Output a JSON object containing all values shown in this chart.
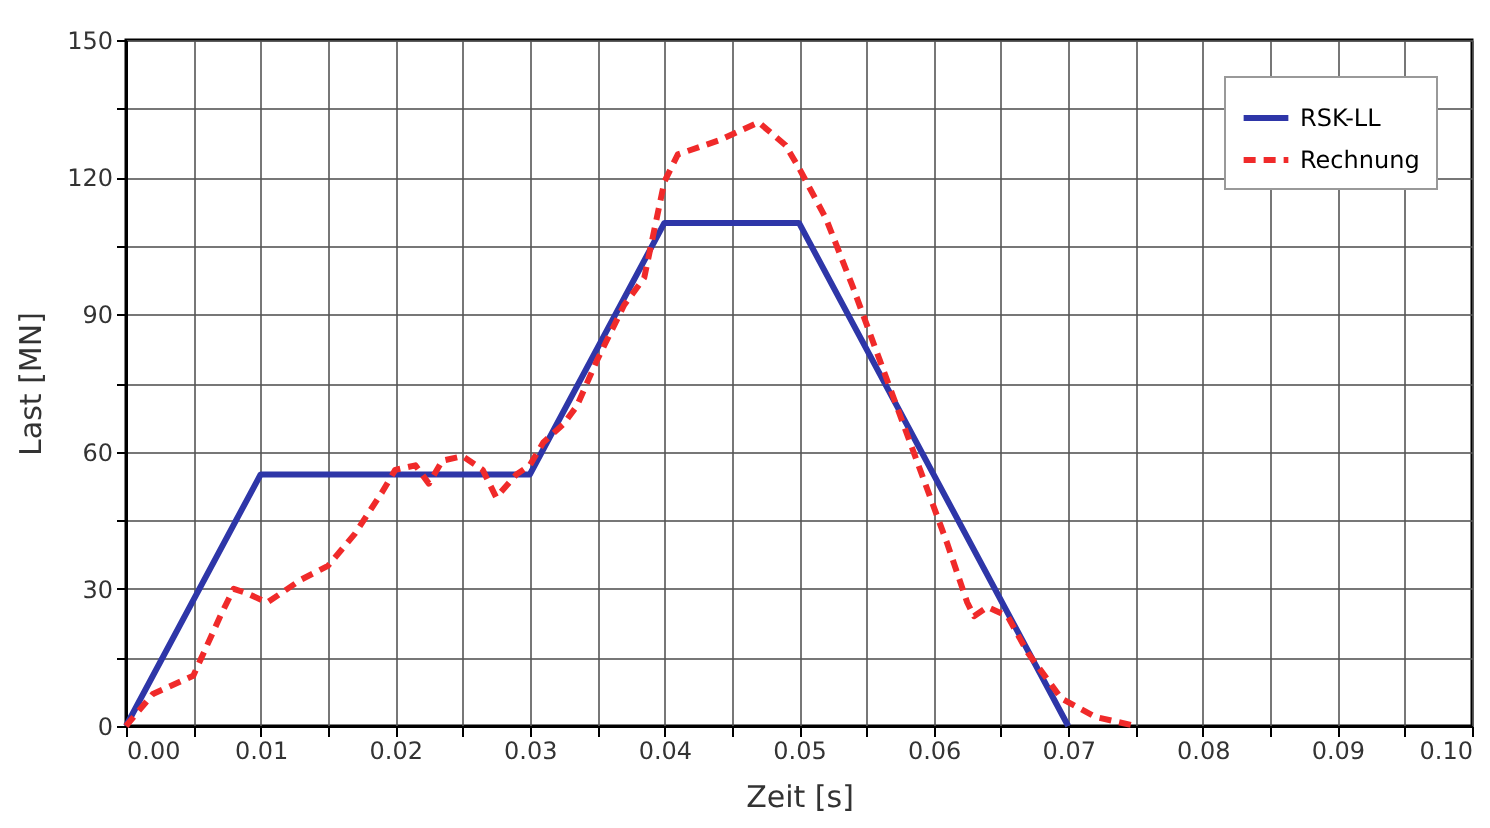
{
  "chart_data": {
    "type": "line",
    "xlabel": "Zeit [s]",
    "ylabel": "Last [MN]",
    "xlim": [
      0,
      0.1
    ],
    "ylim": [
      0,
      150
    ],
    "xticks": [
      {
        "value": 0,
        "label": "0.00"
      },
      {
        "value": 0.005,
        "label": null
      },
      {
        "value": 0.01,
        "label": "0.01"
      },
      {
        "value": 0.015,
        "label": null
      },
      {
        "value": 0.02,
        "label": "0.02"
      },
      {
        "value": 0.025,
        "label": null
      },
      {
        "value": 0.03,
        "label": "0.03"
      },
      {
        "value": 0.035,
        "label": null
      },
      {
        "value": 0.04,
        "label": "0.04"
      },
      {
        "value": 0.045,
        "label": null
      },
      {
        "value": 0.05,
        "label": "0.05"
      },
      {
        "value": 0.055,
        "label": null
      },
      {
        "value": 0.06,
        "label": "0.06"
      },
      {
        "value": 0.065,
        "label": null
      },
      {
        "value": 0.07,
        "label": "0.07"
      },
      {
        "value": 0.075,
        "label": null
      },
      {
        "value": 0.08,
        "label": "0.08"
      },
      {
        "value": 0.085,
        "label": null
      },
      {
        "value": 0.09,
        "label": "0.09"
      },
      {
        "value": 0.095,
        "label": null
      },
      {
        "value": 0.1,
        "label": "0.10"
      }
    ],
    "yticks": [
      0,
      {
        "value": 15,
        "label": null
      },
      30,
      {
        "value": 45,
        "label": null
      },
      60,
      {
        "value": 75,
        "label": null
      },
      90,
      {
        "value": 105,
        "label": null
      },
      120,
      {
        "value": 135,
        "label": null
      },
      150
    ],
    "grid": true,
    "legend": "top right",
    "series": [
      {
        "name": "RSK-LL",
        "color": "#2e36a8",
        "line_style": "solid",
        "x": [
          0,
          0.01,
          0.03,
          0.04,
          0.05,
          0.07
        ],
        "values": [
          0,
          55,
          55,
          110,
          110,
          0
        ]
      },
      {
        "name": "Rechnung",
        "color": "#f02a2a",
        "line_style": "dashed",
        "x": [
          0,
          0.002,
          0.005,
          0.007,
          0.008,
          0.009,
          0.0105,
          0.013,
          0.015,
          0.017,
          0.019,
          0.02,
          0.0215,
          0.0225,
          0.0235,
          0.025,
          0.0265,
          0.0275,
          0.029,
          0.03,
          0.031,
          0.0325,
          0.0335,
          0.035,
          0.037,
          0.0385,
          0.04,
          0.041,
          0.044,
          0.047,
          0.049,
          0.05,
          0.052,
          0.054,
          0.056,
          0.058,
          0.06,
          0.061,
          0.0625,
          0.063,
          0.064,
          0.0655,
          0.067,
          0.0695,
          0.072,
          0.075
        ],
        "values": [
          0,
          7,
          11,
          24,
          30,
          29,
          27,
          32,
          35,
          42,
          51,
          56,
          57,
          53,
          58,
          59,
          56,
          50,
          55,
          57,
          62,
          66,
          70,
          80,
          92,
          98,
          119,
          125,
          128,
          132,
          127,
          122,
          111,
          96,
          80,
          64,
          48,
          40,
          27,
          24,
          26,
          24,
          16,
          6,
          2,
          0
        ]
      }
    ]
  }
}
